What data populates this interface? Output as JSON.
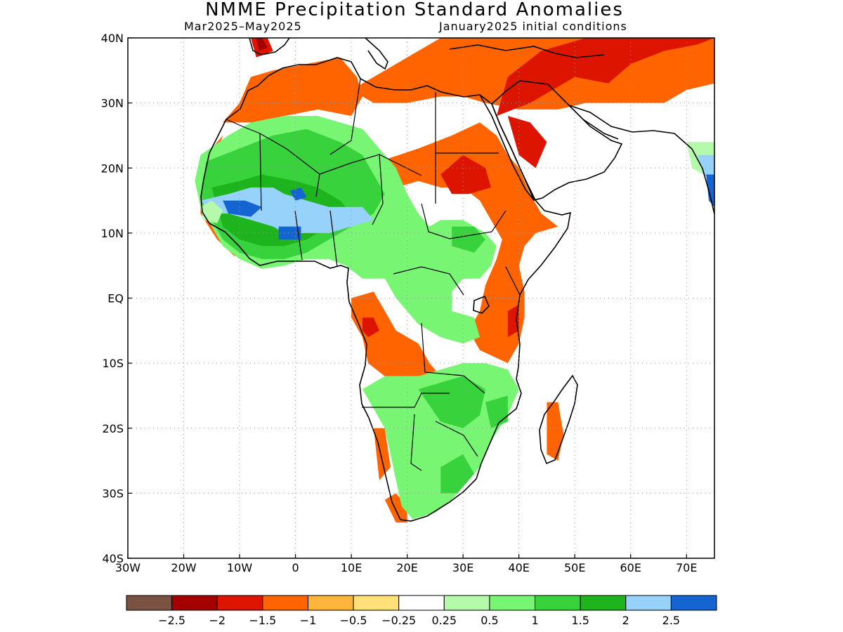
{
  "header": {
    "title": "NMME Precipitation Standard Anomalies",
    "period": "Mar2025–May2025",
    "initial_conditions": "January2025 initial conditions"
  },
  "map": {
    "lon_range": [
      -30,
      75
    ],
    "lat_range": [
      -40,
      40
    ],
    "lon_ticks": [
      {
        "value": -30,
        "label": "30W"
      },
      {
        "value": -20,
        "label": "20W"
      },
      {
        "value": -10,
        "label": "10W"
      },
      {
        "value": 0,
        "label": "0"
      },
      {
        "value": 10,
        "label": "10E"
      },
      {
        "value": 20,
        "label": "20E"
      },
      {
        "value": 30,
        "label": "30E"
      },
      {
        "value": 40,
        "label": "40E"
      },
      {
        "value": 50,
        "label": "50E"
      },
      {
        "value": 60,
        "label": "60E"
      },
      {
        "value": 70,
        "label": "70E"
      }
    ],
    "lat_ticks": [
      {
        "value": 40,
        "label": "40N"
      },
      {
        "value": 30,
        "label": "30N"
      },
      {
        "value": 20,
        "label": "20N"
      },
      {
        "value": 10,
        "label": "10N"
      },
      {
        "value": 0,
        "label": "EQ"
      },
      {
        "value": -10,
        "label": "10S"
      },
      {
        "value": -20,
        "label": "20S"
      },
      {
        "value": -30,
        "label": "30S"
      },
      {
        "value": -40,
        "label": "40S"
      }
    ],
    "grid": "dotted"
  },
  "colorbar": {
    "colors": [
      "#7a5244",
      "#a50000",
      "#dc1400",
      "#ff6400",
      "#ffb43c",
      "#ffe178",
      "#ffffff",
      "#b4faaa",
      "#78f573",
      "#37d23c",
      "#1eb41e",
      "#96d2fa",
      "#1464d2"
    ],
    "labels": [
      "−2.5",
      "−2",
      "−1.5",
      "−1",
      "−0.5",
      "−0.25",
      "0.25",
      "0.5",
      "1",
      "1.5",
      "2",
      "2.5"
    ]
  },
  "anomaly_regions": [
    {
      "level": 3,
      "poly": [
        [
          -13,
          27
        ],
        [
          -10,
          30
        ],
        [
          -8,
          34
        ],
        [
          -4,
          35
        ],
        [
          2,
          36
        ],
        [
          8,
          37
        ],
        [
          11,
          34
        ],
        [
          12,
          31
        ],
        [
          10,
          28
        ],
        [
          4,
          29
        ],
        [
          -2,
          28
        ],
        [
          -8,
          27
        ]
      ]
    },
    {
      "level": 3,
      "poly": [
        [
          10,
          32
        ],
        [
          14,
          30
        ],
        [
          20,
          30
        ],
        [
          26,
          31
        ],
        [
          30,
          31
        ],
        [
          34,
          30
        ],
        [
          40,
          29
        ],
        [
          47,
          29
        ],
        [
          52,
          30
        ],
        [
          58,
          30
        ],
        [
          66,
          30
        ],
        [
          70,
          32
        ],
        [
          75,
          33
        ],
        [
          75,
          40
        ],
        [
          26,
          40
        ],
        [
          22,
          38
        ],
        [
          18,
          36
        ],
        [
          14,
          34
        ]
      ]
    },
    {
      "level": 2,
      "poly": [
        [
          36,
          28
        ],
        [
          42,
          30
        ],
        [
          50,
          34
        ],
        [
          56,
          33
        ],
        [
          60,
          36
        ],
        [
          66,
          38
        ],
        [
          72,
          39
        ],
        [
          75,
          40
        ],
        [
          62,
          40
        ],
        [
          52,
          40
        ],
        [
          44,
          38
        ],
        [
          38,
          34
        ]
      ]
    },
    {
      "level": 2,
      "poly": [
        [
          -8,
          40
        ],
        [
          -5,
          40
        ],
        [
          -4,
          38
        ],
        [
          -7,
          37
        ]
      ]
    },
    {
      "level": 1,
      "poly": [
        [
          -7,
          40
        ],
        [
          -6,
          40
        ],
        [
          -5,
          38.5
        ],
        [
          -6.5,
          38
        ]
      ]
    },
    {
      "level": 3,
      "poly": [
        [
          15,
          21
        ],
        [
          22,
          23
        ],
        [
          28,
          25
        ],
        [
          33,
          27
        ],
        [
          36,
          25
        ],
        [
          38,
          22
        ],
        [
          40,
          20
        ],
        [
          42,
          16
        ],
        [
          44,
          13
        ],
        [
          47,
          11
        ],
        [
          43,
          10
        ],
        [
          41,
          8
        ],
        [
          40,
          5
        ],
        [
          41,
          1
        ],
        [
          41,
          -3
        ],
        [
          40,
          -7
        ],
        [
          38,
          -10
        ],
        [
          33,
          -8
        ],
        [
          31,
          -5
        ],
        [
          33,
          -2
        ],
        [
          34,
          2
        ],
        [
          36,
          6
        ],
        [
          37,
          9
        ],
        [
          35,
          12
        ],
        [
          33,
          15
        ],
        [
          30,
          17
        ],
        [
          26,
          17
        ],
        [
          22,
          18
        ],
        [
          18,
          17
        ]
      ]
    },
    {
      "level": 2,
      "poly": [
        [
          26,
          19
        ],
        [
          30,
          22
        ],
        [
          34,
          20
        ],
        [
          35,
          17
        ],
        [
          31,
          16
        ],
        [
          28,
          16
        ]
      ]
    },
    {
      "level": 2,
      "poly": [
        [
          38,
          28
        ],
        [
          42,
          27
        ],
        [
          45,
          24
        ],
        [
          43,
          20
        ],
        [
          40,
          22
        ]
      ]
    },
    {
      "level": 2,
      "poly": [
        [
          38,
          -2
        ],
        [
          40,
          -1
        ],
        [
          40,
          -5
        ],
        [
          38,
          -6
        ]
      ]
    },
    {
      "level": 3,
      "poly": [
        [
          -8,
          28
        ],
        [
          -4,
          27
        ],
        [
          2,
          26
        ],
        [
          8,
          25
        ],
        [
          12,
          26
        ],
        [
          14,
          24
        ],
        [
          10,
          22
        ],
        [
          4,
          23
        ],
        [
          -2,
          24
        ],
        [
          -8,
          25
        ]
      ]
    },
    {
      "level": 3,
      "poly": [
        [
          -13,
          25
        ],
        [
          -15,
          20
        ],
        [
          -16,
          16
        ],
        [
          -15,
          13
        ],
        [
          -12,
          12
        ],
        [
          -8,
          9
        ],
        [
          -4,
          7
        ],
        [
          -8,
          6
        ],
        [
          -11,
          6.5
        ],
        [
          -14,
          9
        ],
        [
          -17,
          13
        ],
        [
          -17,
          18
        ],
        [
          -16,
          22
        ]
      ]
    },
    {
      "level": 3,
      "poly": [
        [
          10,
          0
        ],
        [
          14,
          1
        ],
        [
          16,
          -2
        ],
        [
          18,
          -5
        ],
        [
          22,
          -7
        ],
        [
          24,
          -10
        ],
        [
          26,
          -12
        ],
        [
          22,
          -12
        ],
        [
          16,
          -12
        ],
        [
          13,
          -10
        ],
        [
          12,
          -6
        ],
        [
          10,
          -3
        ]
      ]
    },
    {
      "level": 2,
      "poly": [
        [
          12,
          -3
        ],
        [
          14,
          -3
        ],
        [
          15,
          -5
        ],
        [
          13,
          -6
        ],
        [
          12,
          -5
        ]
      ]
    },
    {
      "level": 3,
      "poly": [
        [
          45,
          -16
        ],
        [
          47,
          -16
        ],
        [
          48,
          -21
        ],
        [
          47,
          -25
        ],
        [
          45,
          -24
        ]
      ]
    },
    {
      "level": 3,
      "poly": [
        [
          16,
          -31
        ],
        [
          18,
          -30
        ],
        [
          20,
          -32
        ],
        [
          20,
          -34.5
        ],
        [
          18,
          -34.5
        ]
      ]
    },
    {
      "level": 3,
      "poly": [
        [
          14,
          -20
        ],
        [
          16,
          -20
        ],
        [
          17,
          -26
        ],
        [
          15,
          -28
        ]
      ]
    },
    {
      "level": 8,
      "poly": [
        [
          -17,
          22
        ],
        [
          -12,
          25
        ],
        [
          -8,
          27
        ],
        [
          -2,
          28
        ],
        [
          4,
          28
        ],
        [
          8,
          27
        ],
        [
          12,
          26
        ],
        [
          14,
          24
        ],
        [
          18,
          20
        ],
        [
          20,
          16
        ],
        [
          22,
          13
        ],
        [
          24,
          11
        ],
        [
          26,
          12
        ],
        [
          30,
          12
        ],
        [
          34,
          10
        ],
        [
          36,
          8
        ],
        [
          35,
          5
        ],
        [
          33,
          3
        ],
        [
          30,
          3
        ],
        [
          28,
          1
        ],
        [
          28,
          -2
        ],
        [
          32,
          -3
        ],
        [
          33,
          -6
        ],
        [
          30,
          -7
        ],
        [
          26,
          -6
        ],
        [
          22,
          -4
        ],
        [
          20,
          -2
        ],
        [
          18,
          0
        ],
        [
          16,
          3
        ],
        [
          12,
          3
        ],
        [
          9,
          5
        ],
        [
          6,
          6
        ],
        [
          2,
          6
        ],
        [
          -2,
          5
        ],
        [
          -6,
          4.5
        ],
        [
          -10,
          6
        ],
        [
          -13,
          8
        ],
        [
          -15,
          11
        ],
        [
          -17,
          14
        ],
        [
          -18,
          18
        ]
      ]
    },
    {
      "level": 9,
      "poly": [
        [
          -16,
          21
        ],
        [
          -10,
          23
        ],
        [
          -4,
          25
        ],
        [
          2,
          26
        ],
        [
          8,
          24
        ],
        [
          12,
          22
        ],
        [
          14,
          19
        ],
        [
          16,
          16
        ],
        [
          14,
          13
        ],
        [
          10,
          11
        ],
        [
          6,
          9
        ],
        [
          2,
          7
        ],
        [
          -2,
          6
        ],
        [
          -6,
          6
        ],
        [
          -10,
          7
        ],
        [
          -13,
          9
        ],
        [
          -15,
          12
        ],
        [
          -17,
          15
        ]
      ]
    },
    {
      "level": 10,
      "poly": [
        [
          -15,
          17
        ],
        [
          -10,
          18
        ],
        [
          -6,
          19
        ],
        [
          0,
          18
        ],
        [
          4,
          17
        ],
        [
          8,
          15
        ],
        [
          10,
          13
        ],
        [
          6,
          11
        ],
        [
          2,
          9
        ],
        [
          -2,
          8
        ],
        [
          -6,
          8
        ],
        [
          -10,
          9
        ],
        [
          -13,
          11
        ]
      ]
    },
    {
      "level": 11,
      "poly": [
        [
          -17,
          15
        ],
        [
          -12,
          16
        ],
        [
          -8,
          17
        ],
        [
          -4,
          17
        ],
        [
          -2,
          16
        ],
        [
          2,
          15
        ],
        [
          6,
          14
        ],
        [
          12,
          14
        ],
        [
          14,
          12
        ],
        [
          10,
          11
        ],
        [
          6,
          10
        ],
        [
          2,
          10
        ],
        [
          -2,
          10
        ],
        [
          -4,
          11
        ],
        [
          -8,
          12
        ],
        [
          -12,
          13
        ],
        [
          -15,
          13
        ]
      ]
    },
    {
      "level": 12,
      "poly": [
        [
          -13,
          15
        ],
        [
          -9,
          15
        ],
        [
          -6,
          14
        ],
        [
          -8,
          12.5
        ],
        [
          -12,
          13
        ]
      ]
    },
    {
      "level": 12,
      "poly": [
        [
          -3,
          11
        ],
        [
          1,
          11
        ],
        [
          1,
          9
        ],
        [
          -3,
          9
        ]
      ]
    },
    {
      "level": 12,
      "poly": [
        [
          -1,
          16.5
        ],
        [
          1,
          17
        ],
        [
          2,
          15.5
        ],
        [
          0,
          15
        ]
      ]
    },
    {
      "level": 9,
      "poly": [
        [
          28,
          11
        ],
        [
          32,
          11
        ],
        [
          34,
          9
        ],
        [
          32,
          7
        ],
        [
          28,
          8
        ]
      ]
    },
    {
      "level": 8,
      "poly": [
        [
          12,
          -14
        ],
        [
          16,
          -12
        ],
        [
          22,
          -12
        ],
        [
          26,
          -11
        ],
        [
          30,
          -10
        ],
        [
          34,
          -10
        ],
        [
          38,
          -11
        ],
        [
          40,
          -14
        ],
        [
          38,
          -18
        ],
        [
          35,
          -22
        ],
        [
          33,
          -26
        ],
        [
          31,
          -28
        ],
        [
          28,
          -31
        ],
        [
          25,
          -33
        ],
        [
          21,
          -34
        ],
        [
          19,
          -32
        ],
        [
          18,
          -28
        ],
        [
          17,
          -24
        ],
        [
          16,
          -20
        ],
        [
          14,
          -17
        ]
      ]
    },
    {
      "level": 9,
      "poly": [
        [
          22,
          -14
        ],
        [
          26,
          -13
        ],
        [
          30,
          -12
        ],
        [
          34,
          -14
        ],
        [
          33,
          -18
        ],
        [
          30,
          -20
        ],
        [
          26,
          -19
        ]
      ]
    },
    {
      "level": 9,
      "poly": [
        [
          26,
          -26
        ],
        [
          30,
          -24
        ],
        [
          32,
          -27
        ],
        [
          29,
          -30
        ],
        [
          26,
          -30
        ]
      ]
    },
    {
      "level": 9,
      "poly": [
        [
          34,
          -16
        ],
        [
          38,
          -15
        ],
        [
          38,
          -19
        ],
        [
          35,
          -20
        ]
      ]
    },
    {
      "level": 7,
      "poly": [
        [
          -17,
          14
        ],
        [
          -15,
          15
        ],
        [
          -13,
          13.5
        ],
        [
          -14,
          11.5
        ],
        [
          -16.5,
          12
        ]
      ]
    },
    {
      "level": 7,
      "poly": [
        [
          70,
          24
        ],
        [
          75,
          24
        ],
        [
          75,
          18
        ],
        [
          71,
          20
        ]
      ]
    },
    {
      "level": 11,
      "poly": [
        [
          72,
          22
        ],
        [
          75,
          22
        ],
        [
          75,
          18
        ],
        [
          73,
          19
        ]
      ]
    },
    {
      "level": 12,
      "poly": [
        [
          73.5,
          19
        ],
        [
          75,
          19
        ],
        [
          75,
          14
        ],
        [
          74,
          15
        ]
      ]
    }
  ]
}
